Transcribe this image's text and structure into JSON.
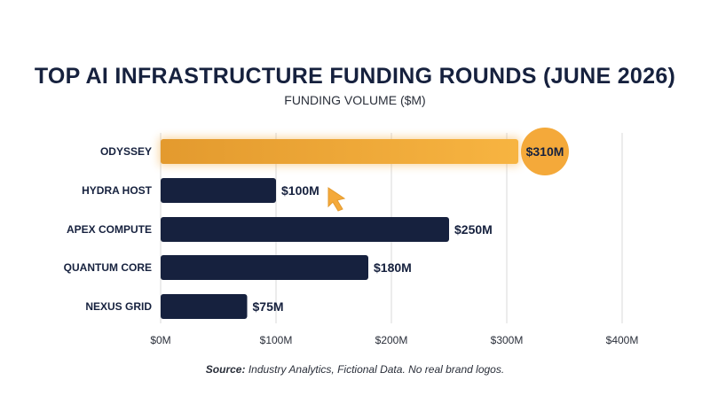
{
  "chart_data": {
    "type": "bar",
    "orientation": "horizontal",
    "title": "TOP AI INFRASTRUCTURE FUNDING ROUNDS (JUNE 2026)",
    "subtitle": "FUNDING VOLUME ($M)",
    "categories": [
      "ODYSSEY",
      "HYDRA HOST",
      "APEX COMPUTE",
      "QUANTUM CORE",
      "NEXUS GRID"
    ],
    "values": [
      310,
      100,
      250,
      180,
      75
    ],
    "value_labels": [
      "$310M",
      "$100M",
      "$250M",
      "$180M",
      "$75M"
    ],
    "highlight_index": 0,
    "xlim": [
      0,
      400
    ],
    "xticks": [
      0,
      100,
      200,
      300,
      400
    ],
    "xtick_labels": [
      "$0M",
      "$100M",
      "$200M",
      "$300M",
      "$400M"
    ],
    "grid": "vertical",
    "colors": {
      "bar": "#16213e",
      "highlight": "#f4a93a",
      "grid": "#d9d9d9"
    }
  },
  "source": {
    "prefix": "Source:",
    "text": " Industry Analytics, Fictional Data. No real brand logos."
  },
  "annotation": {
    "icon": "cursor-arrow-icon",
    "color": "#f4a93a"
  }
}
